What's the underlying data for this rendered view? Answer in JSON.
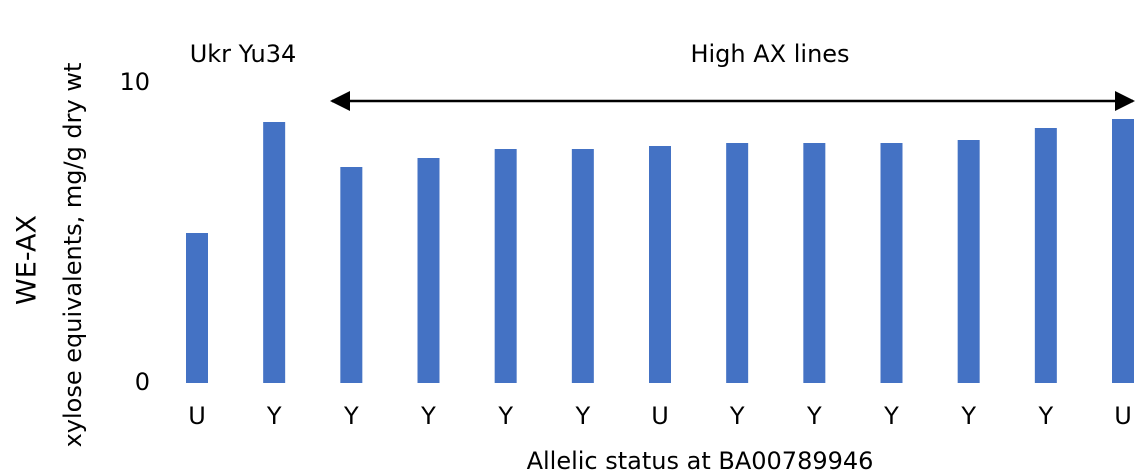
{
  "chart_data": {
    "type": "bar",
    "annotations": [
      "Ukr Yu34",
      "High AX lines"
    ],
    "y_label": "WE-AX",
    "y_sublabel": "xylose equivalents, mg/g dry wt",
    "x_label": "Allelic status at  BA00789946",
    "categories": [
      "U",
      "Y",
      "Y",
      "Y",
      "Y",
      "Y",
      "U",
      "Y",
      "Y",
      "Y",
      "Y",
      "Y",
      "U"
    ],
    "values": [
      5.0,
      8.7,
      7.2,
      7.5,
      7.8,
      7.8,
      7.9,
      8.0,
      8.0,
      8.0,
      8.1,
      8.5,
      8.8
    ],
    "color": "#4472c4",
    "ylim": [
      0,
      10
    ],
    "yticks": [
      0,
      10
    ]
  }
}
